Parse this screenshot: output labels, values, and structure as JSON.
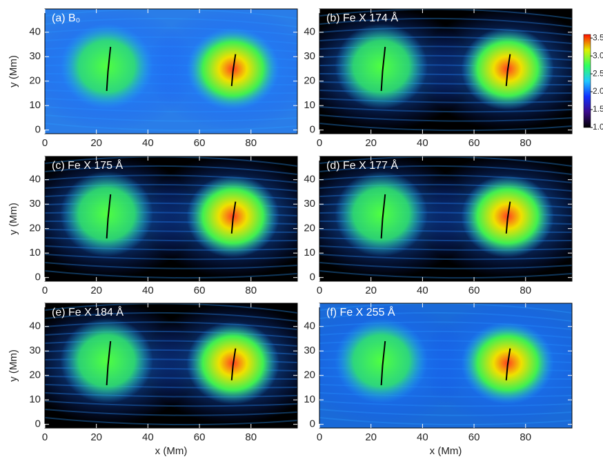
{
  "chart_data": [
    {
      "type": "heatmap",
      "title": "(a) B₀",
      "background": "#2a7de8",
      "ylabel": "y (Mm)",
      "xlim": [
        0,
        98
      ],
      "ylim": [
        -1.5,
        49.5
      ],
      "xticks": [
        0,
        20,
        40,
        60,
        80
      ],
      "yticks": [
        0,
        10,
        20,
        30,
        40
      ]
    },
    {
      "type": "heatmap",
      "title": "(b) Fe X 174 Å",
      "background": "#000000",
      "xlim": [
        0,
        98
      ],
      "ylim": [
        -1.5,
        49.5
      ],
      "xticks": [
        0,
        20,
        40,
        60,
        80
      ],
      "yticks": [
        0,
        10,
        20,
        30,
        40
      ],
      "colorbar": {
        "clim": [
          1.0,
          3.6
        ],
        "colors": [
          "#000000",
          "#3a0a8a",
          "#1030ff",
          "#20c8ff",
          "#30ff60",
          "#e0f000",
          "#ff1000"
        ],
        "ticks": [
          {
            "value": 3.5,
            "label": "3.5"
          },
          {
            "value": 3,
            "label": "3.0"
          },
          {
            "value": 2.5,
            "label": "2.5"
          },
          {
            "value": 2,
            "label": "2.0"
          },
          {
            "value": 1.5,
            "label": "1.5"
          },
          {
            "value": 1,
            "label": "1.0"
          }
        ]
      }
    },
    {
      "type": "heatmap",
      "title": "(c) Fe X 175 Å",
      "background": "#000000",
      "ylabel": "y (Mm)",
      "xlim": [
        0,
        98
      ],
      "ylim": [
        -1.5,
        49.5
      ],
      "xticks": [
        0,
        20,
        40,
        60,
        80
      ],
      "yticks": [
        0,
        10,
        20,
        30,
        40
      ]
    },
    {
      "type": "heatmap",
      "title": "(d) Fe X 177 Å",
      "background": "#000000",
      "xlim": [
        0,
        98
      ],
      "ylim": [
        -1.5,
        49.5
      ],
      "xticks": [
        0,
        20,
        40,
        60,
        80
      ],
      "yticks": [
        0,
        10,
        20,
        30,
        40
      ]
    },
    {
      "type": "heatmap",
      "title": "(e) Fe X 184 Å",
      "background": "#000000",
      "ylabel": "y (Mm)",
      "xlabel": "x (Mm)",
      "xlim": [
        0,
        98
      ],
      "ylim": [
        -1.5,
        49.5
      ],
      "xticks": [
        0,
        20,
        40,
        60,
        80
      ],
      "yticks": [
        0,
        10,
        20,
        30,
        40
      ]
    },
    {
      "type": "heatmap",
      "title": "(f) Fe X 255 Å",
      "background": "#1a6ad8",
      "xlabel": "x (Mm)",
      "xlim": [
        0,
        98
      ],
      "ylim": [
        -1.5,
        49.5
      ],
      "xticks": [
        0,
        20,
        40,
        60,
        80
      ],
      "yticks": [
        0,
        10,
        20,
        30,
        40
      ]
    }
  ]
}
